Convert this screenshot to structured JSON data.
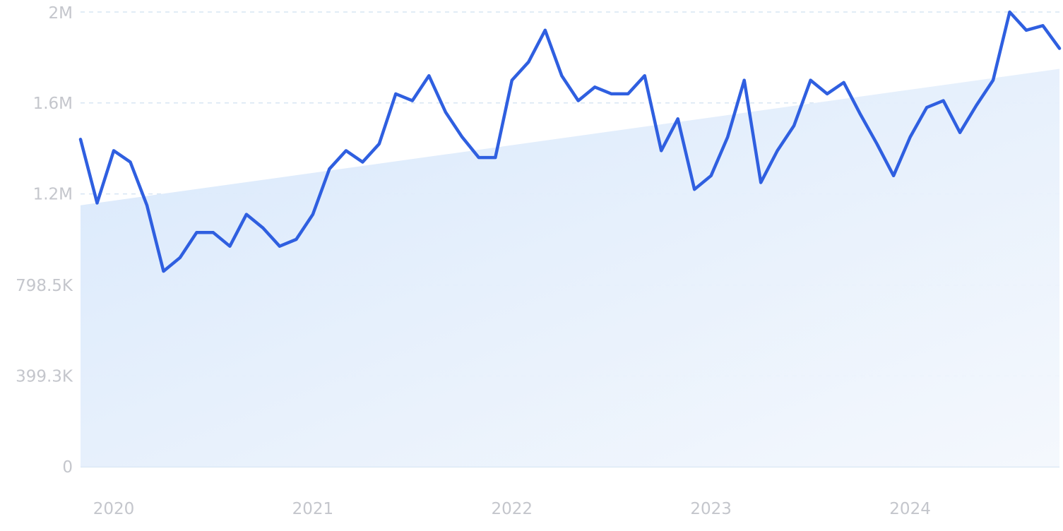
{
  "chart_data": {
    "type": "line",
    "title": "",
    "xlabel": "",
    "ylabel": "",
    "ylim": [
      0,
      2000000
    ],
    "y_ticks": [
      {
        "value": 0,
        "label": "0"
      },
      {
        "value": 399300,
        "label": "399.3K"
      },
      {
        "value": 798500,
        "label": "798.5K"
      },
      {
        "value": 1200000,
        "label": "1.2M"
      },
      {
        "value": 1600000,
        "label": "1.6M"
      },
      {
        "value": 2000000,
        "label": "2M"
      }
    ],
    "x_ticks": [
      {
        "value": "2020-01",
        "label": "2020"
      },
      {
        "value": "2021-01",
        "label": "2021"
      },
      {
        "value": "2022-01",
        "label": "2022"
      },
      {
        "value": "2023-01",
        "label": "2023"
      },
      {
        "value": "2024-01",
        "label": "2024"
      }
    ],
    "xlim": [
      "2019-11",
      "2024-10"
    ],
    "grid": true,
    "series": [
      {
        "x": [
          "2019-11",
          "2019-12",
          "2020-01",
          "2020-02",
          "2020-03",
          "2020-04",
          "2020-05",
          "2020-06",
          "2020-07",
          "2020-08",
          "2020-09",
          "2020-10",
          "2020-11",
          "2020-12",
          "2021-01",
          "2021-02",
          "2021-03",
          "2021-04",
          "2021-05",
          "2021-06",
          "2021-07",
          "2021-08",
          "2021-09",
          "2021-10",
          "2021-11",
          "2021-12",
          "2022-01",
          "2022-02",
          "2022-03",
          "2022-04",
          "2022-05",
          "2022-06",
          "2022-07",
          "2022-08",
          "2022-09",
          "2022-10",
          "2022-11",
          "2022-12",
          "2023-01",
          "2023-02",
          "2023-03",
          "2023-04",
          "2023-05",
          "2023-06",
          "2023-07",
          "2023-08",
          "2023-09",
          "2023-10",
          "2023-11",
          "2023-12",
          "2024-01",
          "2024-02",
          "2024-03",
          "2024-04",
          "2024-05",
          "2024-06",
          "2024-07",
          "2024-08",
          "2024-09",
          "2024-10"
        ],
        "values": [
          1440000,
          1160000,
          1390000,
          1340000,
          1150000,
          860000,
          920000,
          1030000,
          1030000,
          970000,
          1110000,
          1050000,
          970000,
          1000000,
          1110000,
          1310000,
          1390000,
          1340000,
          1420000,
          1640000,
          1610000,
          1720000,
          1560000,
          1450000,
          1360000,
          1360000,
          1700000,
          1780000,
          1920000,
          1720000,
          1610000,
          1670000,
          1640000,
          1640000,
          1720000,
          1390000,
          1530000,
          1220000,
          1280000,
          1450000,
          1700000,
          1250000,
          1390000,
          1500000,
          1700000,
          1640000,
          1690000,
          1550000,
          1420000,
          1280000,
          1450000,
          1580000,
          1610000,
          1470000,
          1590000,
          1700000,
          2000000,
          1920000,
          1940000,
          1840000
        ]
      },
      {
        "x": [
          "2019-11",
          "2024-10"
        ],
        "values": [
          1150000,
          1750000
        ]
      }
    ]
  }
}
